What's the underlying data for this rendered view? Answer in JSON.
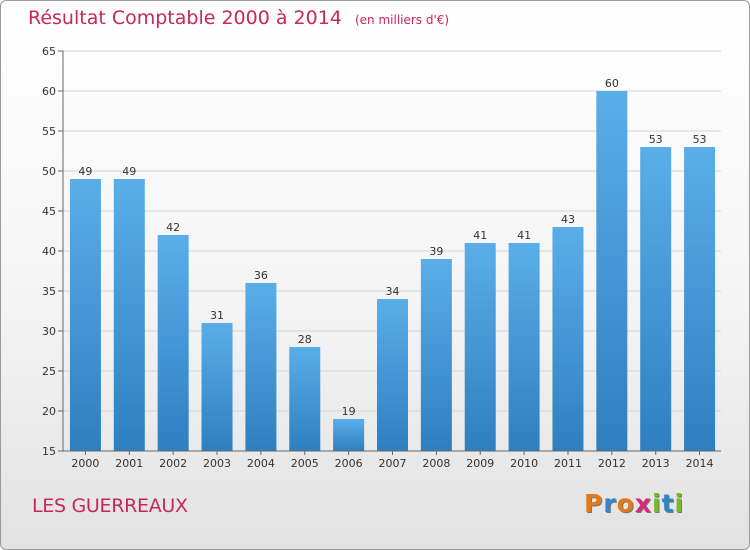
{
  "chart_data": {
    "type": "bar",
    "title": "Résultat Comptable 2000 à 2014",
    "subtitle": "(en milliers d'€)",
    "categories": [
      "2000",
      "2001",
      "2002",
      "2003",
      "2004",
      "2005",
      "2006",
      "2007",
      "2008",
      "2009",
      "2010",
      "2011",
      "2012",
      "2013",
      "2014"
    ],
    "values": [
      49,
      49,
      42,
      31,
      36,
      28,
      19,
      34,
      39,
      41,
      41,
      43,
      60,
      53,
      53
    ],
    "yticks": [
      15,
      20,
      25,
      30,
      35,
      40,
      45,
      50,
      55,
      60,
      65
    ],
    "ylim": [
      15,
      65
    ],
    "xlabel": "",
    "ylabel": "",
    "grid": true,
    "bar_color_top": "#5aaee8",
    "bar_color_bottom": "#2e7fc0"
  },
  "location": "LES GUERREAUX",
  "logo": {
    "letters": [
      "P",
      "r",
      "o",
      "x",
      "i",
      "t",
      "i"
    ],
    "colors": [
      "#e07b1c",
      "#2f86c9",
      "#e07b1c",
      "#d8297a",
      "#7ab82c",
      "#2f86c9",
      "#7ab82c"
    ]
  },
  "accent_color": "#c8265f"
}
